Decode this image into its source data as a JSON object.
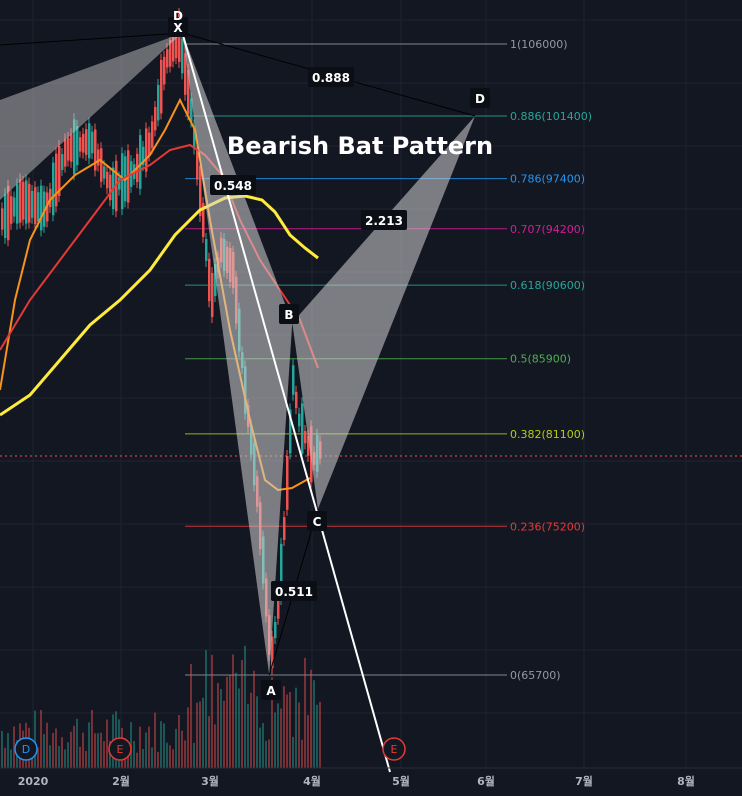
{
  "chart_data": {
    "type": "candlestick",
    "title": "Bearish Bat Pattern",
    "x_ticks": [
      "2020",
      "2월",
      "3월",
      "4월",
      "5월",
      "6월",
      "7월",
      "8월"
    ],
    "fib_levels": [
      {
        "ratio": "1",
        "price": 106000,
        "label": "1(106000)",
        "color": "#9598a1"
      },
      {
        "ratio": "0.886",
        "price": 101400,
        "label": "0.886(101400)",
        "color": "#26a69a"
      },
      {
        "ratio": "0.786",
        "price": 97400,
        "label": "0.786(97400)",
        "color": "#2196f3"
      },
      {
        "ratio": "0.707",
        "price": 94200,
        "label": "0.707(94200)",
        "color": "#d81b99"
      },
      {
        "ratio": "0.618",
        "price": 90600,
        "label": "0.618(90600)",
        "color": "#26a69a"
      },
      {
        "ratio": "0.5",
        "price": 85900,
        "label": "0.5(85900)",
        "color": "#4caf50"
      },
      {
        "ratio": "0.382",
        "price": 81100,
        "label": "0.382(81100)",
        "color": "#b5cc18"
      },
      {
        "ratio": "0.236",
        "price": 75200,
        "label": "0.236(75200)",
        "color": "#e53935"
      },
      {
        "ratio": "0",
        "price": 65700,
        "label": "0(65700)",
        "color": "#9598a1"
      }
    ],
    "pattern_points": [
      {
        "label": "X",
        "date": "2020-02-21",
        "price": 106700
      },
      {
        "label": "A",
        "date": "2020-03-19",
        "price": 65700
      },
      {
        "label": "B",
        "date": "2020-03-26",
        "price": 88200
      },
      {
        "label": "C",
        "date": "2020-04-03",
        "price": 76300
      },
      {
        "label": "D",
        "date": "2020-05-28",
        "price": 101400
      }
    ],
    "ratios": [
      {
        "label": "0.888"
      },
      {
        "label": "0.548"
      },
      {
        "label": "2.213"
      },
      {
        "label": "0.511"
      }
    ],
    "extra_labels": [
      "D",
      "E",
      "E"
    ],
    "top_label": "D"
  }
}
